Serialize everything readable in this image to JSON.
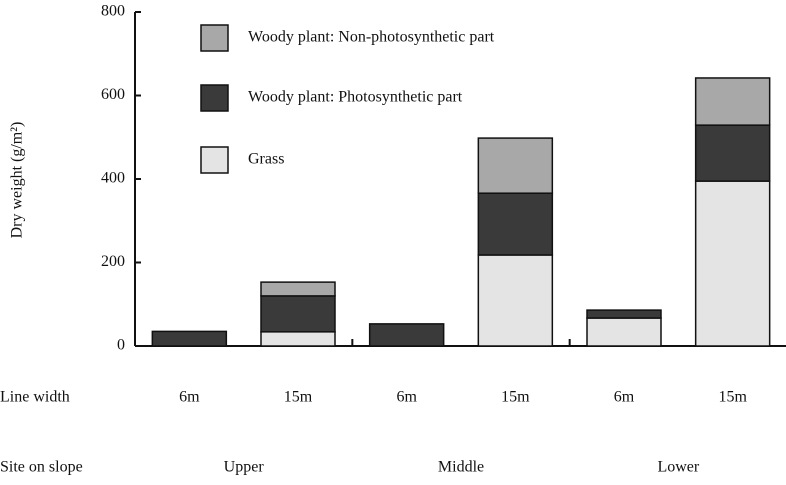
{
  "chart_data": {
    "type": "stacked-bar",
    "y_label": "Dry weight (g/m²)",
    "row_labels": [
      "Line width",
      "Site on slope"
    ],
    "categories": [
      "6m",
      "15m",
      "6m",
      "15m",
      "6m",
      "15m"
    ],
    "groups": [
      "Upper",
      "Middle",
      "Lower"
    ],
    "series": [
      {
        "name": "Grass",
        "color": "#e4e4e4",
        "values": [
          0,
          34,
          0,
          218,
          67,
          395
        ]
      },
      {
        "name": "Woody plant: Photosynthetic part",
        "color": "#3a3a3a",
        "values": [
          35,
          86,
          53,
          148,
          19,
          134
        ]
      },
      {
        "name": "Woody plant: Non-photosynthetic part",
        "color": "#a8a8a8",
        "values": [
          0,
          33,
          0,
          132,
          0,
          113
        ]
      }
    ],
    "ylim": [
      0,
      800
    ],
    "yticks": [
      0,
      200,
      400,
      600,
      800
    ]
  }
}
